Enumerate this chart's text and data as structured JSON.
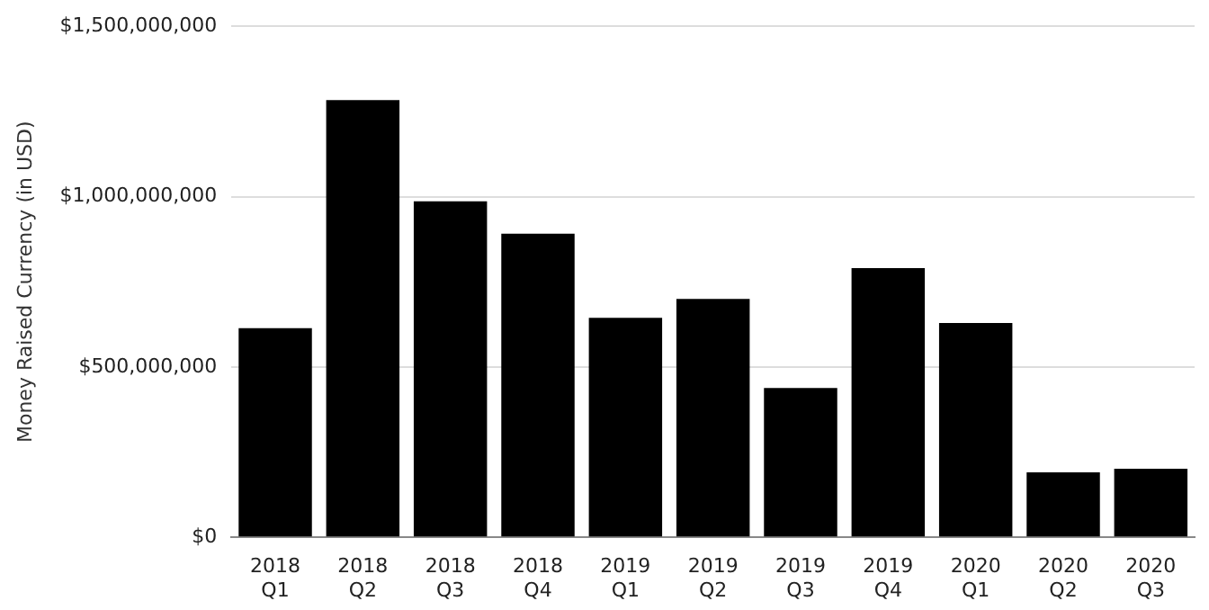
{
  "chart_data": {
    "type": "bar",
    "ylabel": "Money Raised Currency (in USD)",
    "categories": [
      "2018 Q1",
      "2018 Q2",
      "2018 Q3",
      "2018 Q4",
      "2019 Q1",
      "2019 Q2",
      "2019 Q3",
      "2019 Q4",
      "2020 Q1",
      "2020 Q2",
      "2020 Q3"
    ],
    "values": [
      614000000,
      1283000000,
      986000000,
      891000000,
      644000000,
      700000000,
      438000000,
      790000000,
      629000000,
      191000000,
      201000000
    ],
    "color": "#000000",
    "ylim": [
      0,
      1500000000
    ],
    "yticks": [
      {
        "value": 0,
        "label": "$0"
      },
      {
        "value": 500000000,
        "label": "$500,000,000"
      },
      {
        "value": 1000000000,
        "label": "$1,000,000,000"
      },
      {
        "value": 1500000000,
        "label": "$1,500,000,000"
      }
    ],
    "grid": "y"
  }
}
